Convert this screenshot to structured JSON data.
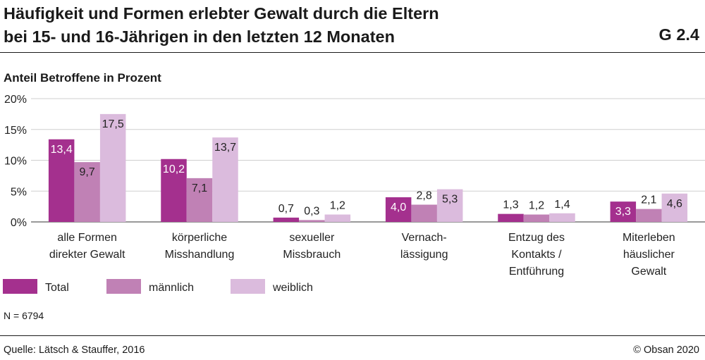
{
  "header": {
    "title_line1": "Häufigkeit und Formen erlebter Gewalt durch die Eltern",
    "title_line2": "bei 15- und 16-Jährigen in den letzten 12 Monaten",
    "chart_id": "G 2.4"
  },
  "footer": {
    "note": "N = 6794",
    "source": "Quelle: Lätsch & Stauffer, 2016",
    "copyright": "© Obsan 2020"
  },
  "colors": {
    "total": "#a4308e",
    "maennlich": "#c081b5",
    "weiblich": "#dbbbdd"
  },
  "chart_data": {
    "type": "bar",
    "title": "Häufigkeit und Formen erlebter Gewalt durch die Eltern bei 15- und 16-Jährigen in den letzten 12 Monaten",
    "ylabel": "Anteil Betroffene in Prozent",
    "xlabel": "",
    "ylim": [
      0,
      20
    ],
    "yticks": [
      "0%",
      "5%",
      "10%",
      "15%",
      "20%"
    ],
    "grid": true,
    "legend_position": "bottom-left",
    "categories": [
      [
        "alle Formen",
        "direkter Gewalt"
      ],
      [
        "körperliche",
        "Misshandlung"
      ],
      [
        "sexueller",
        "Missbrauch"
      ],
      [
        "Vernach-",
        "lässigung"
      ],
      [
        "Entzug des",
        "Kontakts /",
        "Entführung"
      ],
      [
        "Miterleben",
        "häuslicher",
        "Gewalt"
      ]
    ],
    "series": [
      {
        "name": "Total",
        "values": [
          13.4,
          10.2,
          0.7,
          4.0,
          1.3,
          3.3
        ],
        "labels": [
          "13,4",
          "10,2",
          "0,7",
          "4,0",
          "1,3",
          "3,3"
        ]
      },
      {
        "name": "männlich",
        "values": [
          9.7,
          7.1,
          0.3,
          2.8,
          1.2,
          2.1
        ],
        "labels": [
          "9,7",
          "7,1",
          "0,3",
          "2,8",
          "1,2",
          "2,1"
        ]
      },
      {
        "name": "weiblich",
        "values": [
          17.5,
          13.7,
          1.2,
          5.3,
          1.4,
          4.6
        ],
        "labels": [
          "17,5",
          "13,7",
          "1,2",
          "5,3",
          "1,4",
          "4,6"
        ]
      }
    ]
  }
}
